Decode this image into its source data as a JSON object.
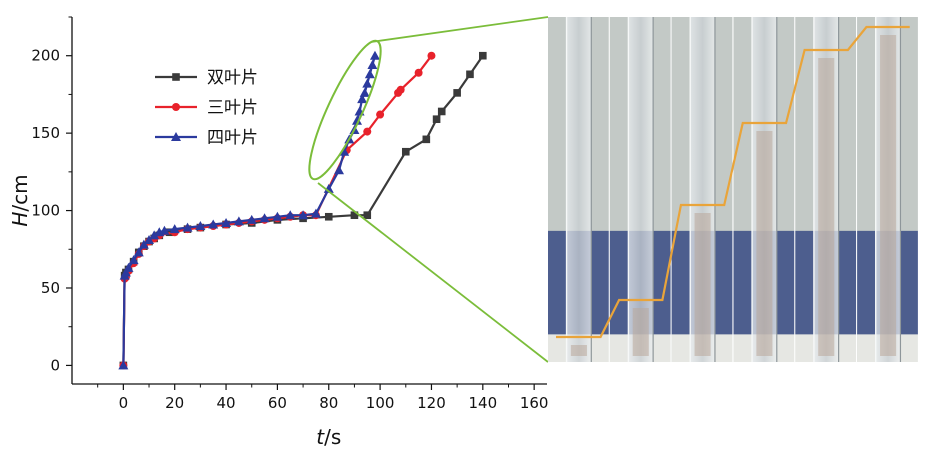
{
  "chart_data": {
    "type": "line",
    "title": "",
    "xlabel_var": "t",
    "xlabel_unit": "/s",
    "ylabel_var": "H",
    "ylabel_unit": "/cm",
    "xlim": [
      -20,
      165
    ],
    "ylim": [
      -12,
      225
    ],
    "xticks": [
      0,
      20,
      40,
      60,
      80,
      100,
      120,
      140,
      160
    ],
    "yticks": [
      0,
      50,
      100,
      150,
      200
    ],
    "legend_position": "top-left",
    "grid": false,
    "inset_photo": "sequence of six photos of transparent tubes with an orange staircase line",
    "series": [
      {
        "name": "双叶片",
        "color": "#3a3a3a",
        "marker": "square",
        "points": [
          [
            0,
            0
          ],
          [
            0.5,
            58
          ],
          [
            1,
            60
          ],
          [
            2,
            62
          ],
          [
            4,
            67
          ],
          [
            6,
            73
          ],
          [
            8,
            77
          ],
          [
            10,
            80
          ],
          [
            12,
            82
          ],
          [
            14,
            84
          ],
          [
            18,
            86
          ],
          [
            25,
            88
          ],
          [
            30,
            89
          ],
          [
            40,
            91
          ],
          [
            50,
            92
          ],
          [
            60,
            94
          ],
          [
            70,
            95
          ],
          [
            80,
            96
          ],
          [
            90,
            97
          ],
          [
            95,
            97
          ],
          [
            110,
            138
          ],
          [
            118,
            146
          ],
          [
            122,
            159
          ],
          [
            124,
            164
          ],
          [
            130,
            176
          ],
          [
            135,
            188
          ],
          [
            140,
            200
          ]
        ]
      },
      {
        "name": "三叶片",
        "color": "#e8222b",
        "marker": "circle",
        "points": [
          [
            0,
            0
          ],
          [
            0.5,
            56
          ],
          [
            1,
            57
          ],
          [
            2,
            61
          ],
          [
            4,
            66
          ],
          [
            6,
            72
          ],
          [
            8,
            77
          ],
          [
            10,
            80
          ],
          [
            12,
            82
          ],
          [
            14,
            84
          ],
          [
            20,
            86
          ],
          [
            25,
            88
          ],
          [
            30,
            89
          ],
          [
            35,
            90
          ],
          [
            40,
            91
          ],
          [
            45,
            92
          ],
          [
            50,
            93
          ],
          [
            55,
            94
          ],
          [
            60,
            95
          ],
          [
            65,
            96
          ],
          [
            70,
            97
          ],
          [
            75,
            97
          ],
          [
            87,
            139
          ],
          [
            95,
            151
          ],
          [
            100,
            162
          ],
          [
            107,
            176
          ],
          [
            108,
            178
          ],
          [
            115,
            189
          ],
          [
            120,
            200
          ]
        ]
      },
      {
        "name": "四叶片",
        "color": "#2b3a9e",
        "marker": "triangle",
        "points": [
          [
            0,
            0
          ],
          [
            0.5,
            58
          ],
          [
            1,
            60
          ],
          [
            2,
            63
          ],
          [
            4,
            68
          ],
          [
            6,
            73
          ],
          [
            8,
            78
          ],
          [
            10,
            81
          ],
          [
            12,
            84
          ],
          [
            14,
            86
          ],
          [
            16,
            87
          ],
          [
            20,
            88
          ],
          [
            25,
            89
          ],
          [
            30,
            90
          ],
          [
            35,
            91
          ],
          [
            40,
            92
          ],
          [
            45,
            93
          ],
          [
            50,
            94
          ],
          [
            55,
            95
          ],
          [
            60,
            96
          ],
          [
            65,
            97
          ],
          [
            70,
            97
          ],
          [
            75,
            98
          ],
          [
            80,
            114
          ],
          [
            84,
            126
          ],
          [
            86,
            138
          ],
          [
            88,
            146
          ],
          [
            90,
            152
          ],
          [
            91,
            158
          ],
          [
            92,
            164
          ],
          [
            93,
            172
          ],
          [
            94,
            176
          ],
          [
            95,
            182
          ],
          [
            96,
            188
          ],
          [
            97,
            194
          ],
          [
            98,
            200
          ]
        ]
      }
    ]
  }
}
